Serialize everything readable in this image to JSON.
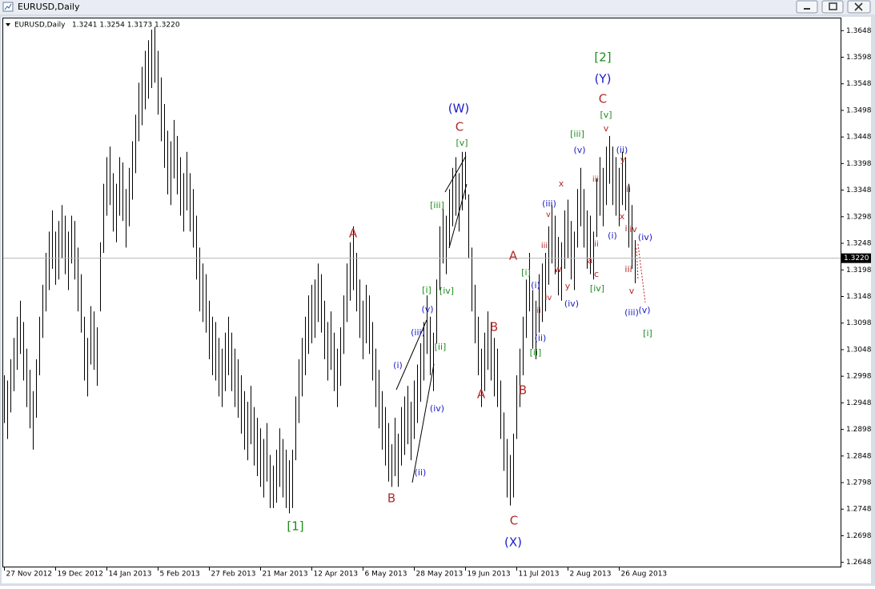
{
  "window_title": "EURUSD,Daily",
  "chart_data": {
    "type": "ohlc",
    "title": "EURUSD,Daily",
    "last_quote": "1.3241 1.3254 1.3173 1.3220",
    "color": "#000000",
    "high": [
      1.3,
      1.299,
      1.303,
      1.307,
      1.311,
      1.314,
      1.31,
      1.305,
      1.301,
      1.297,
      1.303,
      1.311,
      1.317,
      1.323,
      1.327,
      1.331,
      1.327,
      1.329,
      1.332,
      1.33,
      1.327,
      1.33,
      1.329,
      1.324,
      1.319,
      1.311,
      1.307,
      1.313,
      1.312,
      1.309,
      1.325,
      1.336,
      1.341,
      1.343,
      1.338,
      1.336,
      1.341,
      1.34,
      1.335,
      1.339,
      1.344,
      1.349,
      1.355,
      1.358,
      1.361,
      1.363,
      1.365,
      1.3655,
      1.361,
      1.356,
      1.351,
      1.346,
      1.344,
      1.348,
      1.345,
      1.341,
      1.338,
      1.342,
      1.338,
      1.335,
      1.33,
      1.324,
      1.321,
      1.319,
      1.314,
      1.311,
      1.31,
      1.307,
      1.305,
      1.308,
      1.311,
      1.308,
      1.305,
      1.303,
      1.3,
      1.297,
      1.295,
      1.298,
      1.294,
      1.292,
      1.29,
      1.288,
      1.291,
      1.285,
      1.283,
      1.286,
      1.29,
      1.288,
      1.286,
      1.284,
      1.286,
      1.296,
      1.303,
      1.307,
      1.311,
      1.315,
      1.317,
      1.318,
      1.321,
      1.319,
      1.314,
      1.31,
      1.312,
      1.308,
      1.305,
      1.309,
      1.315,
      1.321,
      1.325,
      1.328,
      1.323,
      1.318,
      1.314,
      1.317,
      1.315,
      1.31,
      1.305,
      1.301,
      1.297,
      1.294,
      1.291,
      1.287,
      1.292,
      1.289,
      1.294,
      1.296,
      1.298,
      1.295,
      1.299,
      1.302,
      1.306,
      1.31,
      1.315,
      1.311,
      1.308,
      1.318,
      1.328,
      1.332,
      1.33,
      1.335,
      1.339,
      1.341,
      1.338,
      1.342,
      1.342,
      1.334,
      1.324,
      1.317,
      1.311,
      1.305,
      1.308,
      1.312,
      1.31,
      1.307,
      1.305,
      1.299,
      1.293,
      1.288,
      1.285,
      1.289,
      1.3,
      1.305,
      1.311,
      1.318,
      1.323,
      1.316,
      1.314,
      1.319,
      1.321,
      1.323,
      1.328,
      1.332,
      1.33,
      1.326,
      1.325,
      1.331,
      1.333,
      1.329,
      1.327,
      1.335,
      1.339,
      1.335,
      1.331,
      1.33,
      1.327,
      1.337,
      1.341,
      1.339,
      1.343,
      1.345,
      1.343,
      1.341,
      1.339,
      1.342,
      1.341,
      1.336,
      1.332,
      1.3254
    ],
    "low": [
      1.291,
      1.288,
      1.293,
      1.297,
      1.301,
      1.304,
      1.299,
      1.294,
      1.29,
      1.286,
      1.292,
      1.3,
      1.307,
      1.312,
      1.316,
      1.32,
      1.317,
      1.318,
      1.322,
      1.319,
      1.316,
      1.321,
      1.318,
      1.312,
      1.308,
      1.299,
      1.296,
      1.302,
      1.301,
      1.298,
      1.312,
      1.323,
      1.33,
      1.332,
      1.327,
      1.325,
      1.33,
      1.329,
      1.324,
      1.328,
      1.333,
      1.338,
      1.344,
      1.347,
      1.35,
      1.352,
      1.354,
      1.355,
      1.349,
      1.344,
      1.339,
      1.334,
      1.332,
      1.337,
      1.334,
      1.33,
      1.327,
      1.331,
      1.327,
      1.324,
      1.318,
      1.312,
      1.31,
      1.308,
      1.303,
      1.3,
      1.299,
      1.296,
      1.294,
      1.297,
      1.3,
      1.297,
      1.294,
      1.292,
      1.289,
      1.286,
      1.284,
      1.287,
      1.283,
      1.281,
      1.279,
      1.277,
      1.28,
      1.275,
      1.275,
      1.276,
      1.279,
      1.277,
      1.275,
      1.274,
      1.275,
      1.284,
      1.291,
      1.296,
      1.3,
      1.304,
      1.306,
      1.307,
      1.31,
      1.308,
      1.303,
      1.299,
      1.301,
      1.297,
      1.294,
      1.298,
      1.304,
      1.31,
      1.314,
      1.316,
      1.312,
      1.307,
      1.303,
      1.306,
      1.304,
      1.299,
      1.294,
      1.29,
      1.286,
      1.283,
      1.28,
      1.279,
      1.281,
      1.279,
      1.283,
      1.285,
      1.287,
      1.284,
      1.288,
      1.291,
      1.295,
      1.299,
      1.304,
      1.3,
      1.297,
      1.306,
      1.316,
      1.321,
      1.319,
      1.324,
      1.328,
      1.33,
      1.327,
      1.331,
      1.333,
      1.322,
      1.312,
      1.306,
      1.3,
      1.294,
      1.297,
      1.301,
      1.299,
      1.296,
      1.294,
      1.288,
      1.282,
      1.277,
      1.2755,
      1.277,
      1.288,
      1.294,
      1.3,
      1.307,
      1.312,
      1.305,
      1.303,
      1.308,
      1.31,
      1.312,
      1.317,
      1.321,
      1.319,
      1.315,
      1.314,
      1.32,
      1.322,
      1.318,
      1.316,
      1.324,
      1.328,
      1.324,
      1.32,
      1.319,
      1.318,
      1.326,
      1.33,
      1.328,
      1.332,
      1.336,
      1.332,
      1.33,
      1.328,
      1.332,
      1.331,
      1.324,
      1.32,
      1.3173
    ],
    "ylim": [
      1.264,
      1.3671
    ],
    "yticks": [
      1.3648,
      1.3598,
      1.3548,
      1.3498,
      1.3448,
      1.3398,
      1.3348,
      1.3298,
      1.3248,
      1.3198,
      1.3148,
      1.3098,
      1.3048,
      1.2998,
      1.2948,
      1.2898,
      1.2848,
      1.2798,
      1.2748,
      1.2698,
      1.2648
    ],
    "xticks": [
      {
        "value": 0,
        "label": "27 Nov 2012"
      },
      {
        "value": 16,
        "label": "19 Dec 2012"
      },
      {
        "value": 32,
        "label": "14 Jan 2013"
      },
      {
        "value": 48,
        "label": "5 Feb 2013"
      },
      {
        "value": 64,
        "label": "27 Feb 2013"
      },
      {
        "value": 80,
        "label": "21 Mar 2013"
      },
      {
        "value": 96,
        "label": "12 Apr 2013"
      },
      {
        "value": 112,
        "label": "6 May 2013"
      },
      {
        "value": 128,
        "label": "28 May 2013"
      },
      {
        "value": 144,
        "label": "19 Jun 2013"
      },
      {
        "value": 160,
        "label": "11 Jul 2013"
      },
      {
        "value": 176,
        "label": "2 Aug 2013"
      },
      {
        "value": 192,
        "label": "26 Aug 2013"
      }
    ],
    "price_line": {
      "value": 1.322,
      "label": "1.3220"
    },
    "annotations": [
      {
        "text": "[2]",
        "color": "#1e8c1e"
      },
      {
        "text": "(Y)",
        "color": "#1c1cc8"
      },
      {
        "text": "C",
        "color": "#b22a2a"
      },
      {
        "text": "[v]",
        "color": "#1e8c1e"
      },
      {
        "text": "(W)",
        "color": "#1c1cc8"
      },
      {
        "text": "C",
        "color": "#b22a2a"
      },
      {
        "text": "[v]",
        "color": "#1e8c1e"
      },
      {
        "text": "A",
        "color": "#b22a2a"
      },
      {
        "text": "[1]",
        "color": "#1e8c1e"
      },
      {
        "text": "B",
        "color": "#b22a2a"
      },
      {
        "text": "A",
        "color": "#b22a2a"
      },
      {
        "text": "B",
        "color": "#b22a2a"
      },
      {
        "text": "B",
        "color": "#b22a2a"
      },
      {
        "text": "A",
        "color": "#b22a2a"
      },
      {
        "text": "C",
        "color": "#b22a2a"
      },
      {
        "text": "(X)",
        "color": "#1c1cc8"
      },
      {
        "text": "[iii]",
        "color": "#1e8c1e"
      },
      {
        "text": "[i]",
        "color": "#1e8c1e"
      },
      {
        "text": "[iv]",
        "color": "#1e8c1e"
      },
      {
        "text": "[ii]",
        "color": "#1e8c1e"
      },
      {
        "text": "(v)",
        "color": "#1c1cc8"
      },
      {
        "text": "(iii)",
        "color": "#1c1cc8"
      },
      {
        "text": "(i)",
        "color": "#1c1cc8"
      },
      {
        "text": "(iv)",
        "color": "#1c1cc8"
      },
      {
        "text": "(ii)",
        "color": "#1c1cc8"
      },
      {
        "text": "[i]",
        "color": "#1e8c1e"
      },
      {
        "text": "(i)",
        "color": "#1c1cc8"
      },
      {
        "text": "[ii]",
        "color": "#1e8c1e"
      },
      {
        "text": "(ii)",
        "color": "#1c1cc8"
      },
      {
        "text": "(iii)",
        "color": "#1c1cc8"
      },
      {
        "text": "(v)",
        "color": "#1c1cc8"
      },
      {
        "text": "(iv)",
        "color": "#1c1cc8"
      },
      {
        "text": "[iii]",
        "color": "#1e8c1e"
      },
      {
        "text": "x",
        "color": "#b22a2a"
      },
      {
        "text": "w",
        "color": "#b22a2a"
      },
      {
        "text": "y",
        "color": "#b22a2a"
      },
      {
        "text": "[iv]",
        "color": "#1e8c1e"
      },
      {
        "text": "c",
        "color": "#b22a2a"
      },
      {
        "text": "a",
        "color": "#b22a2a"
      },
      {
        "text": "(ii)",
        "color": "#1c1cc8"
      },
      {
        "text": "(i)",
        "color": "#1c1cc8"
      },
      {
        "text": "(iv)",
        "color": "#1c1cc8"
      },
      {
        "text": "(iii)",
        "color": "#1c1cc8"
      },
      {
        "text": "(v)",
        "color": "#1c1cc8"
      },
      {
        "text": "[i]",
        "color": "#1e8c1e"
      },
      {
        "text": "v",
        "color": "#b22a2a"
      },
      {
        "text": "iii",
        "color": "#b22a2a"
      },
      {
        "text": "i",
        "color": "#b22a2a"
      },
      {
        "text": "iv",
        "color": "#b22a2a"
      },
      {
        "text": "ii",
        "color": "#b22a2a"
      },
      {
        "text": "x",
        "color": "#b22a2a"
      },
      {
        "text": "y",
        "color": "#b22a2a"
      },
      {
        "text": "v",
        "color": "#b22a2a"
      },
      {
        "text": "iii",
        "color": "#b22a2a"
      },
      {
        "text": "iv",
        "color": "#b22a2a"
      },
      {
        "text": "v",
        "color": "#b22a2a"
      },
      {
        "text": "ii",
        "color": "#b22a2a"
      },
      {
        "text": "iii",
        "color": "#b22a2a"
      },
      {
        "text": "ii",
        "color": "#b22a2a"
      }
    ]
  }
}
